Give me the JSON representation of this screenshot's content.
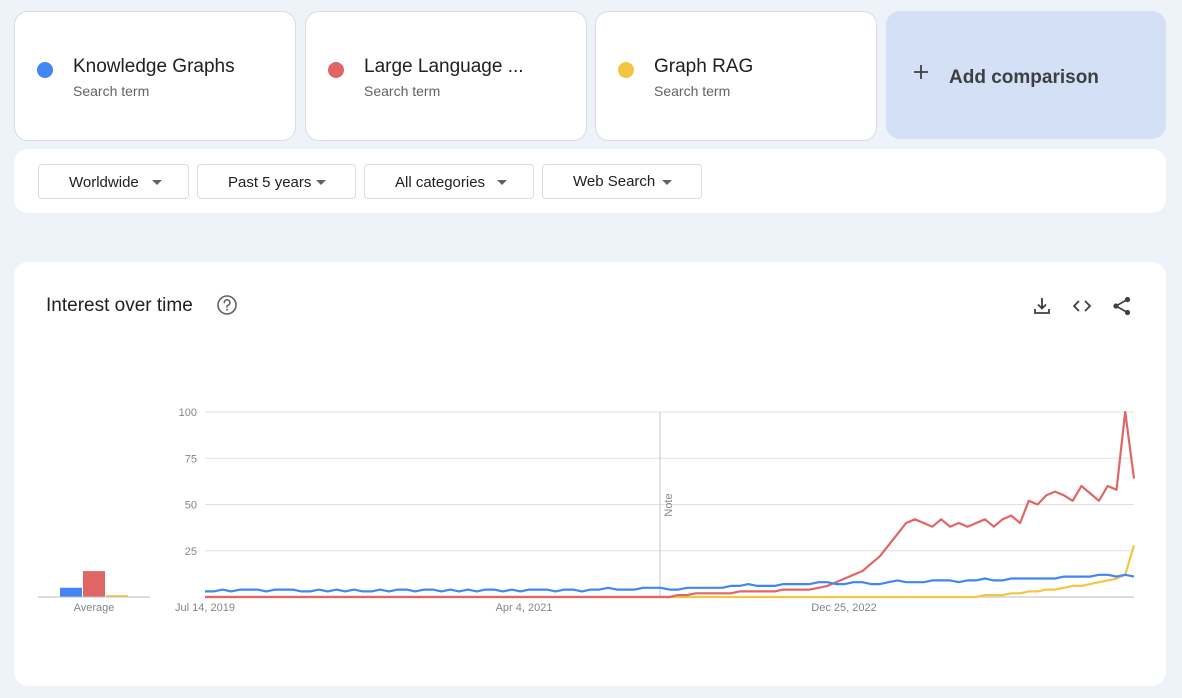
{
  "terms": [
    {
      "name": "Knowledge Graphs",
      "sub": "Search term",
      "color": "#4285f4"
    },
    {
      "name": "Large Language ...",
      "sub": "Search term",
      "color": "#e06666"
    },
    {
      "name": "Graph RAG",
      "sub": "Search term",
      "color": "#f4c542"
    }
  ],
  "add_comparison": "Add comparison",
  "filters": [
    "Worldwide",
    "Past 5 years",
    "All categories",
    "Web Search"
  ],
  "chart_title": "Interest over time",
  "icons": {
    "help": "help-circle-icon",
    "download": "download-icon",
    "embed": "code-icon",
    "share": "share-icon"
  },
  "chart_data": {
    "type": "line",
    "yticks": [
      25,
      50,
      75,
      100
    ],
    "ylim": [
      0,
      100
    ],
    "xticks": [
      "Jul 14, 2019",
      "Apr 4, 2021",
      "Dec 25, 2022"
    ],
    "note_label": "Note",
    "average_label": "Average",
    "averages": [
      5,
      14,
      1
    ],
    "series": [
      {
        "name": "Knowledge Graphs",
        "color": "#4285f4",
        "values": [
          3,
          3,
          4,
          3,
          4,
          4,
          4,
          3,
          4,
          4,
          4,
          3,
          3,
          4,
          3,
          4,
          3,
          4,
          3,
          3,
          4,
          3,
          4,
          4,
          3,
          4,
          4,
          3,
          4,
          3,
          4,
          3,
          4,
          4,
          3,
          4,
          3,
          4,
          4,
          4,
          3,
          4,
          4,
          3,
          4,
          4,
          5,
          4,
          4,
          4,
          5,
          5,
          5,
          4,
          4,
          5,
          5,
          5,
          5,
          5,
          6,
          6,
          7,
          6,
          6,
          6,
          7,
          7,
          7,
          7,
          8,
          8,
          7,
          7,
          8,
          8,
          7,
          7,
          8,
          9,
          8,
          8,
          8,
          9,
          9,
          9,
          8,
          9,
          9,
          10,
          9,
          9,
          10,
          10,
          10,
          10,
          10,
          10,
          11,
          11,
          11,
          11,
          12,
          12,
          11,
          12,
          11
        ]
      },
      {
        "name": "Large Language Models",
        "color": "#e06666",
        "values": [
          0,
          0,
          0,
          0,
          0,
          0,
          0,
          0,
          0,
          0,
          0,
          0,
          0,
          0,
          0,
          0,
          0,
          0,
          0,
          0,
          0,
          0,
          0,
          0,
          0,
          0,
          0,
          0,
          0,
          0,
          0,
          0,
          0,
          0,
          0,
          0,
          0,
          0,
          0,
          0,
          0,
          0,
          0,
          0,
          0,
          0,
          0,
          0,
          0,
          0,
          0,
          0,
          0,
          0,
          1,
          1,
          2,
          2,
          2,
          2,
          2,
          3,
          3,
          3,
          3,
          3,
          4,
          4,
          4,
          4,
          5,
          6,
          8,
          10,
          12,
          14,
          18,
          22,
          28,
          34,
          40,
          42,
          40,
          38,
          42,
          38,
          40,
          38,
          40,
          42,
          38,
          42,
          44,
          40,
          52,
          50,
          55,
          57,
          55,
          52,
          60,
          56,
          52,
          60,
          58,
          100,
          64
        ]
      },
      {
        "name": "Graph RAG",
        "color": "#f4c542",
        "values": [
          0,
          0,
          0,
          0,
          0,
          0,
          0,
          0,
          0,
          0,
          0,
          0,
          0,
          0,
          0,
          0,
          0,
          0,
          0,
          0,
          0,
          0,
          0,
          0,
          0,
          0,
          0,
          0,
          0,
          0,
          0,
          0,
          0,
          0,
          0,
          0,
          0,
          0,
          0,
          0,
          0,
          0,
          0,
          0,
          0,
          0,
          0,
          0,
          0,
          0,
          0,
          0,
          0,
          0,
          0,
          0,
          0,
          0,
          0,
          0,
          0,
          0,
          0,
          0,
          0,
          0,
          0,
          0,
          0,
          0,
          0,
          0,
          0,
          0,
          0,
          0,
          0,
          0,
          0,
          0,
          0,
          0,
          0,
          0,
          0,
          0,
          0,
          0,
          0,
          1,
          1,
          1,
          2,
          2,
          3,
          3,
          4,
          4,
          5,
          6,
          6,
          7,
          8,
          9,
          10,
          12,
          28
        ]
      }
    ]
  }
}
